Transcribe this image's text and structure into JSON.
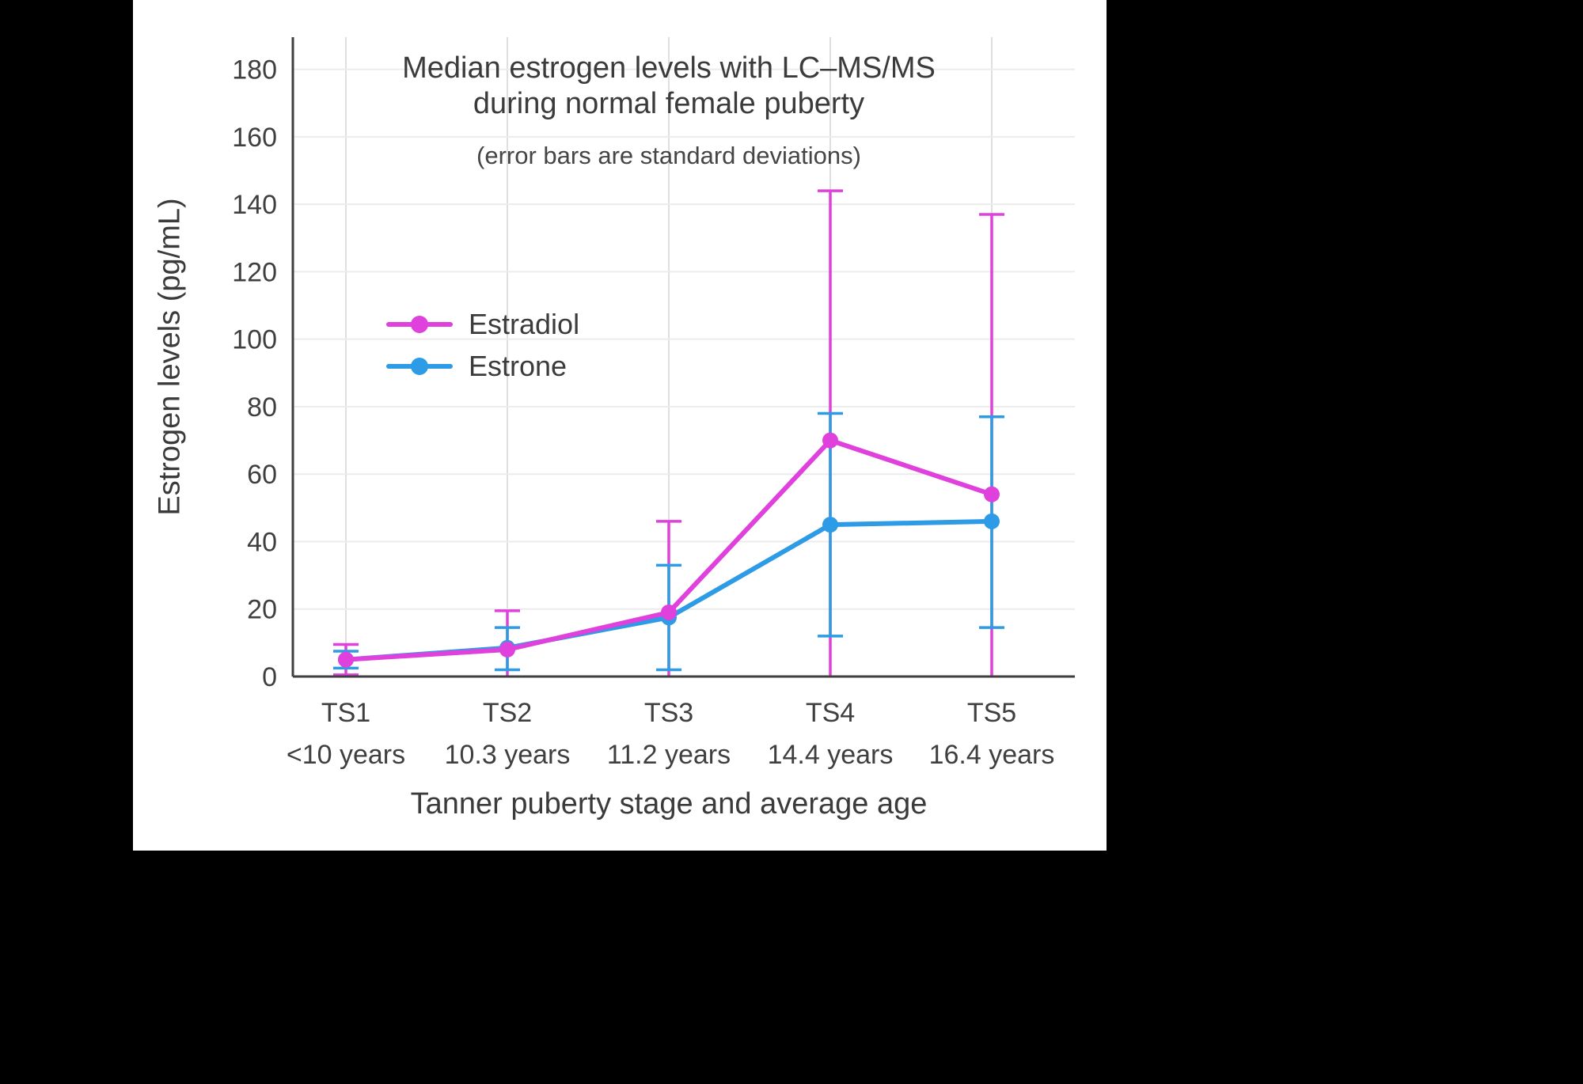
{
  "canvas": {
    "background": "#000000",
    "chart_background": "#ffffff"
  },
  "chart_data": {
    "type": "line",
    "title": "Median estrogen levels with LC–MS/MS during normal female puberty",
    "title_lines": [
      "Median estrogen levels with LC–MS/MS",
      "during normal female puberty"
    ],
    "subtitle": "(error bars are standard deviations)",
    "xlabel": "Tanner puberty stage and average age",
    "ylabel": "Estrogen levels (pg/mL)",
    "categories": [
      "TS1",
      "TS2",
      "TS3",
      "TS4",
      "TS5"
    ],
    "category_ages": [
      "<10 years",
      "10.3 years",
      "11.2 years",
      "14.4 years",
      "16.4 years"
    ],
    "y_ticks": [
      0,
      20,
      40,
      60,
      80,
      100,
      120,
      140,
      160,
      180
    ],
    "ylim": [
      0,
      190
    ],
    "grid": true,
    "error_bar_meaning": "standard deviations",
    "legend": {
      "position": "inside-upper-left",
      "entries": [
        "Estradiol",
        "Estrone"
      ]
    },
    "series": [
      {
        "name": "Estradiol",
        "color": "#e041dc",
        "values": [
          5,
          8,
          19,
          70,
          54
        ],
        "error_upper": [
          9.5,
          19.5,
          46,
          144,
          137
        ],
        "error_lower": [
          0.5,
          0,
          0,
          0,
          0
        ]
      },
      {
        "name": "Estrone",
        "color": "#2d9be5",
        "values": [
          5,
          8.5,
          17.5,
          45,
          46
        ],
        "error_upper": [
          7.5,
          14.5,
          33,
          78,
          77
        ],
        "error_lower": [
          2.5,
          2,
          2,
          12,
          14.5
        ]
      }
    ],
    "colors": {
      "text": "#3f3f3f",
      "axis": "#3f3f3f",
      "grid_vertical": "#dfdfdf",
      "grid_horizontal": "#ececec"
    }
  }
}
